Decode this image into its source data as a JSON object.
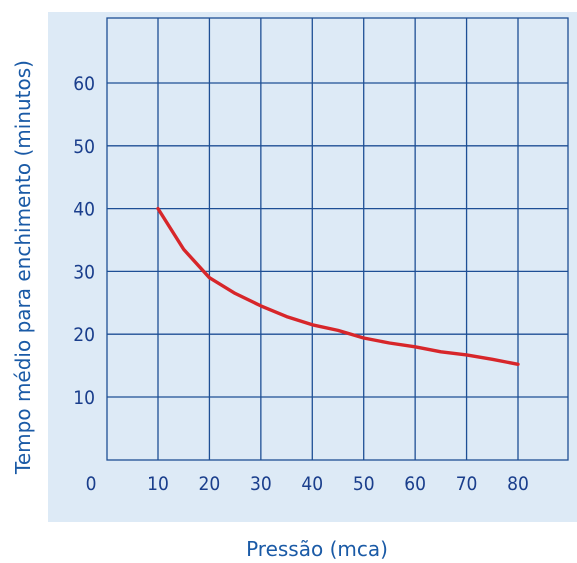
{
  "colors": {
    "plot_background": "#ddeaf6",
    "grid": "#1e4f95",
    "series": "#d7262a",
    "tick_text": "#1a3e8c",
    "axis_label_text": "#1a5aa6"
  },
  "chart_data": {
    "type": "line",
    "title": "",
    "xlabel": "Pressão (mca)",
    "ylabel": "Tempo médio para enchimento (minutos)",
    "xlim": [
      0,
      90
    ],
    "ylim": [
      0,
      70
    ],
    "x_ticks": [
      0,
      10,
      20,
      30,
      40,
      50,
      60,
      70,
      80
    ],
    "y_ticks": [
      10,
      20,
      30,
      40,
      50,
      60
    ],
    "grid": true,
    "legend": "none",
    "series": [
      {
        "x": [
          10,
          15,
          20,
          25,
          30,
          35,
          40,
          45,
          50,
          55,
          60,
          65,
          70,
          75,
          80
        ],
        "y": [
          40,
          33.5,
          29,
          26.5,
          24.5,
          22.8,
          21.5,
          20.6,
          19.4,
          18.6,
          18,
          17.2,
          16.7,
          16,
          15.2
        ]
      }
    ]
  }
}
